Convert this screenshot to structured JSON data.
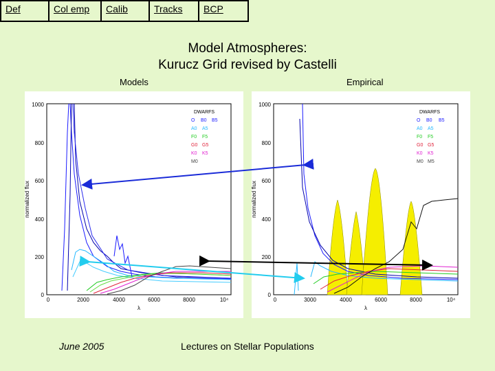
{
  "nav": {
    "items": [
      {
        "label": "Def"
      },
      {
        "label": "Col emp"
      },
      {
        "label": "Calib"
      },
      {
        "label": "Tracks"
      },
      {
        "label": "BCP"
      }
    ]
  },
  "slide": {
    "title_line1": "Model Atmospheres:",
    "title_line2": "Kurucz Grid revised by Castelli",
    "label_left": "Models",
    "label_right": "Empirical",
    "footer_date": "June 2005",
    "footer_course": "Lectures on Stellar Populations"
  },
  "plots": {
    "ylabel": "normalized flux",
    "xlabel": "λ",
    "y_ticks": [
      "0",
      "200",
      "400",
      "600",
      "800",
      "1000"
    ],
    "x_ticks_left": [
      "0",
      "2000",
      "4000",
      "6000",
      "8000",
      "10⁴"
    ],
    "x_ticks_right": [
      "0",
      "3000",
      "4000",
      "6000",
      "8000",
      "10⁴"
    ],
    "legend_title": "DWARFS",
    "legend": [
      {
        "a": "O",
        "b": "B0",
        "c": "B5",
        "color": "#1a1aff"
      },
      {
        "a": "A0",
        "b": "A5",
        "color": "#22b8ff"
      },
      {
        "a": "F0",
        "b": "F5",
        "color": "#22cc22"
      },
      {
        "a": "G0",
        "b": "G5",
        "color": "#e0223a"
      },
      {
        "a": "K0",
        "b": "K5",
        "color": "#e020d0"
      },
      {
        "a": "M0",
        "b": "M5",
        "color": "#444444"
      }
    ]
  }
}
